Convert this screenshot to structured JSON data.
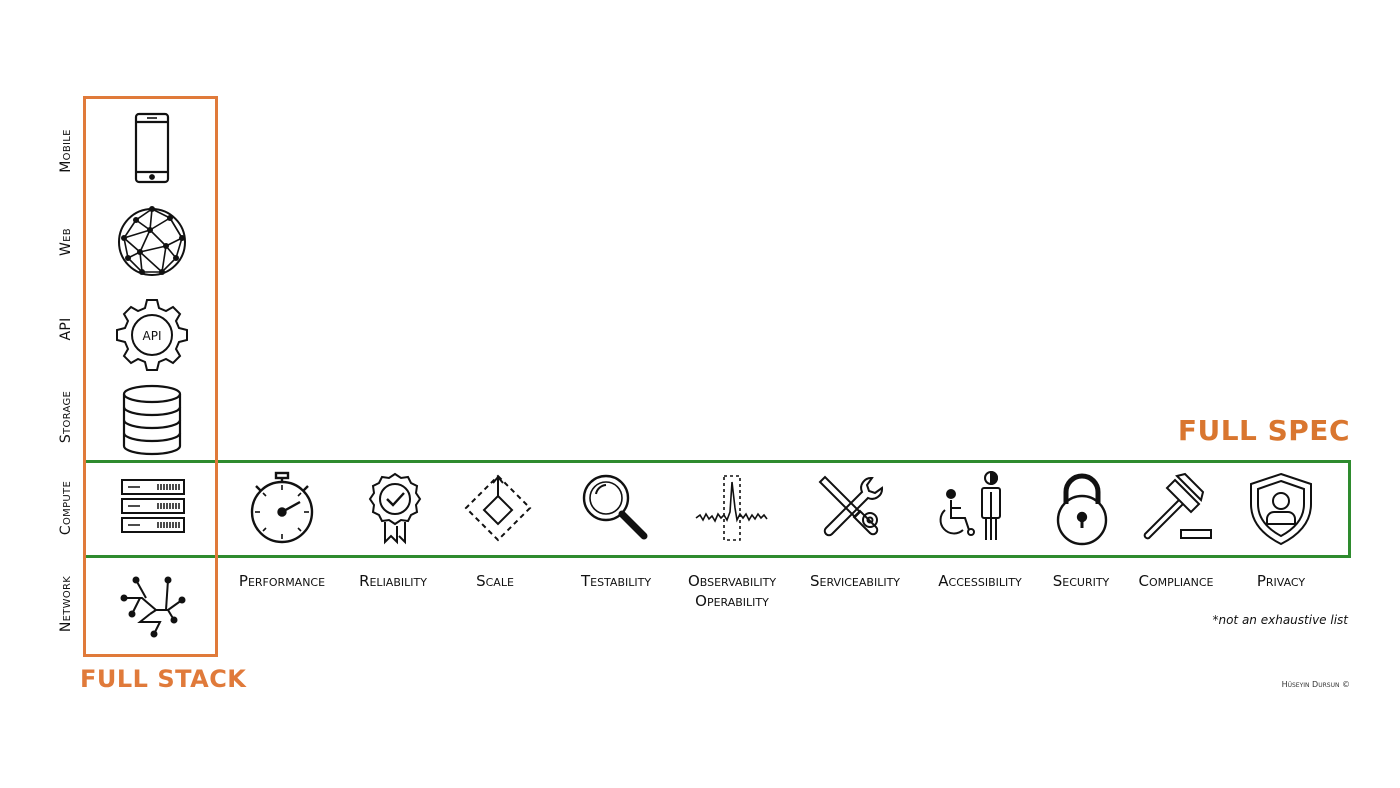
{
  "stack": {
    "title": "FULL STACK",
    "layers": [
      {
        "label": "Mobile",
        "icon": "smartphone-icon"
      },
      {
        "label": "Web",
        "icon": "globe-mesh-icon"
      },
      {
        "label": "API",
        "icon": "api-gear-icon",
        "icon_text": "API"
      },
      {
        "label": "Storage",
        "icon": "database-icon"
      },
      {
        "label": "Compute",
        "icon": "server-icon"
      },
      {
        "label": "Network",
        "icon": "network-graph-icon"
      }
    ]
  },
  "spec": {
    "title": "FULL SPEC",
    "attributes": [
      {
        "label": "Performance",
        "icon": "stopwatch-icon"
      },
      {
        "label": "Reliability",
        "icon": "badge-check-icon"
      },
      {
        "label": "Scale",
        "icon": "scale-arrow-icon"
      },
      {
        "label": "Testability",
        "icon": "magnifier-icon"
      },
      {
        "label": "Observability",
        "label2": "Operability",
        "icon": "signal-spike-icon"
      },
      {
        "label": "Serviceability",
        "icon": "tools-icon"
      },
      {
        "label": "Accessibility",
        "icon": "wheelchair-person-icon"
      },
      {
        "label": "Security",
        "icon": "padlock-icon"
      },
      {
        "label": "Compliance",
        "icon": "gavel-icon"
      },
      {
        "label": "Privacy",
        "icon": "shield-user-icon"
      }
    ]
  },
  "note": "*not an exhaustive list",
  "credit": "Hüseyin Dursun ©",
  "colors": {
    "stack_accent": "#e07a3a",
    "spec_accent": "#2e8b2e"
  }
}
